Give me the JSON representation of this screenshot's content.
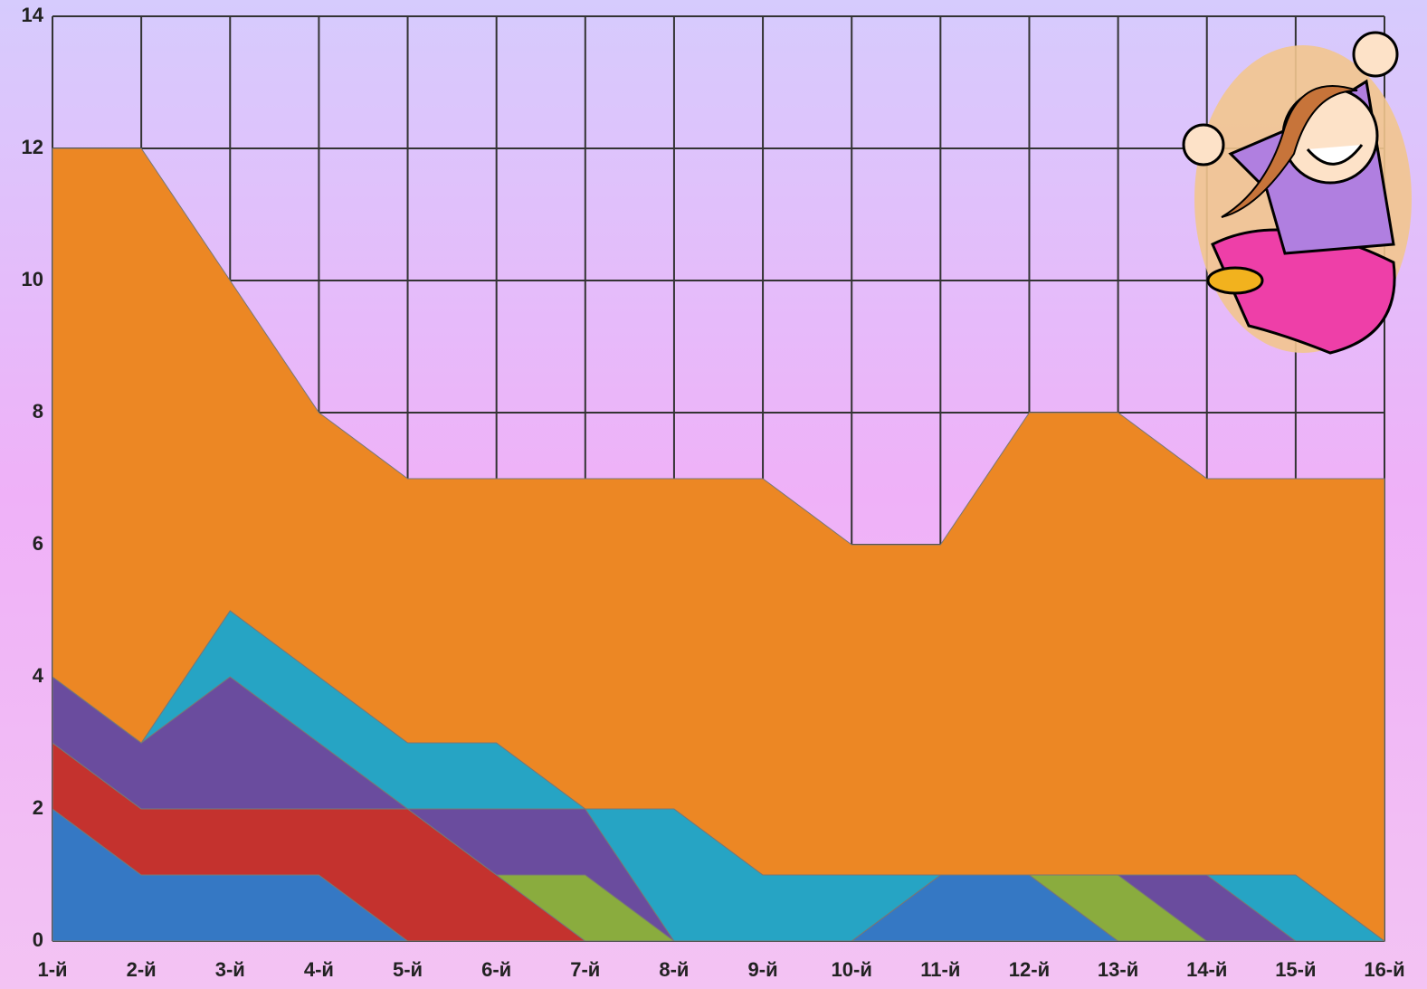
{
  "chart_data": {
    "type": "stacked_area",
    "categories": [
      "1-й",
      "2-й",
      "3-й",
      "4-й",
      "5-й",
      "6-й",
      "7-й",
      "8-й",
      "9-й",
      "10-й",
      "11-й",
      "12-й",
      "13-й",
      "14-й",
      "15-й",
      "16-й"
    ],
    "series": [
      {
        "color": "#3578c4",
        "values": [
          2,
          1,
          1,
          1,
          0,
          0,
          0,
          0,
          0,
          0,
          1,
          1,
          0,
          0,
          0,
          0
        ]
      },
      {
        "color": "#c4322e",
        "values": [
          1,
          1,
          1,
          1,
          2,
          1,
          0,
          0,
          0,
          0,
          0,
          0,
          0,
          0,
          0,
          0
        ]
      },
      {
        "color": "#8aac3e",
        "values": [
          0,
          0,
          0,
          0,
          0,
          0,
          1,
          0,
          0,
          0,
          0,
          0,
          1,
          0,
          0,
          0
        ]
      },
      {
        "color": "#6a4c9e",
        "values": [
          1,
          1,
          2,
          1,
          0,
          1,
          1,
          0,
          0,
          0,
          0,
          0,
          0,
          1,
          0,
          0
        ]
      },
      {
        "color": "#26a4c4",
        "values": [
          0,
          0,
          1,
          1,
          1,
          1,
          0,
          2,
          1,
          1,
          0,
          0,
          0,
          0,
          1,
          0
        ]
      },
      {
        "color": "#ec8724",
        "values": [
          8,
          9,
          5,
          4,
          4,
          4,
          5,
          5,
          6,
          5,
          5,
          7,
          7,
          6,
          6,
          7
        ]
      }
    ],
    "ylim": [
      0,
      14
    ],
    "yticks": [
      0,
      2,
      4,
      6,
      8,
      10,
      12,
      14
    ],
    "grid": true
  }
}
